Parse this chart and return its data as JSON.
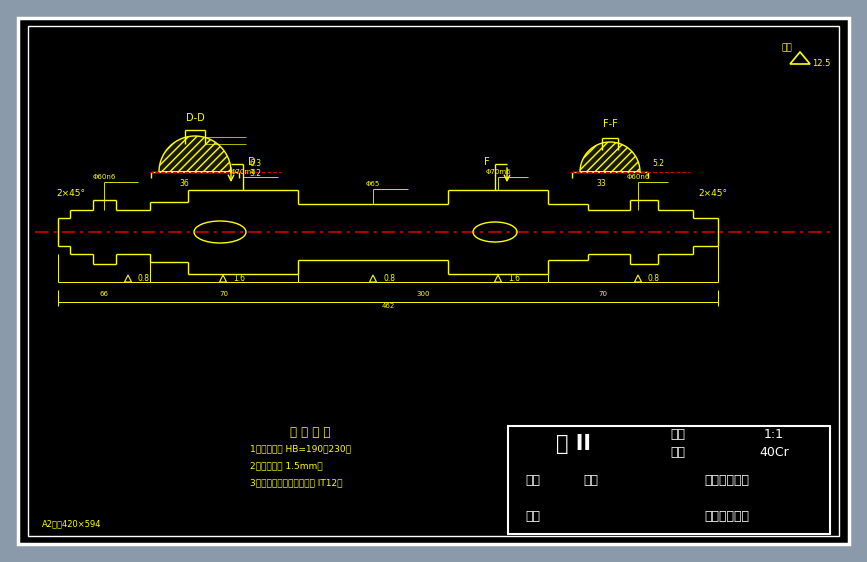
{
  "outer_bg": "#8a9aaa",
  "drawing_bg": "#000000",
  "yellow": "#ffff00",
  "white": "#ffffff",
  "red": "#cc0000",
  "title": "轴 II",
  "ratio_label": "比例",
  "ratio_value": "1:1",
  "material_label": "材料",
  "material_value": "40Cr",
  "designer_label": "设计",
  "designer_name": "邹虎",
  "school1": "陕西理工学院",
  "checker_label": "审核",
  "school2": "成人教育学院",
  "paper_label": "A2图纸420×594",
  "tech_title": "技 术 要 求",
  "tech1": "1、调质处理 HB=190～230；",
  "tech2": "2、圆角半径 1.5mm；",
  "tech3": "3、未注尺寸尺差处精度为 IT12。",
  "chamfer_left": "2×45°",
  "chamfer_right": "2×45°",
  "roughness_note": "其余",
  "section_dd": "D-D",
  "section_ff": "F-F",
  "roughness_big": "12.5"
}
